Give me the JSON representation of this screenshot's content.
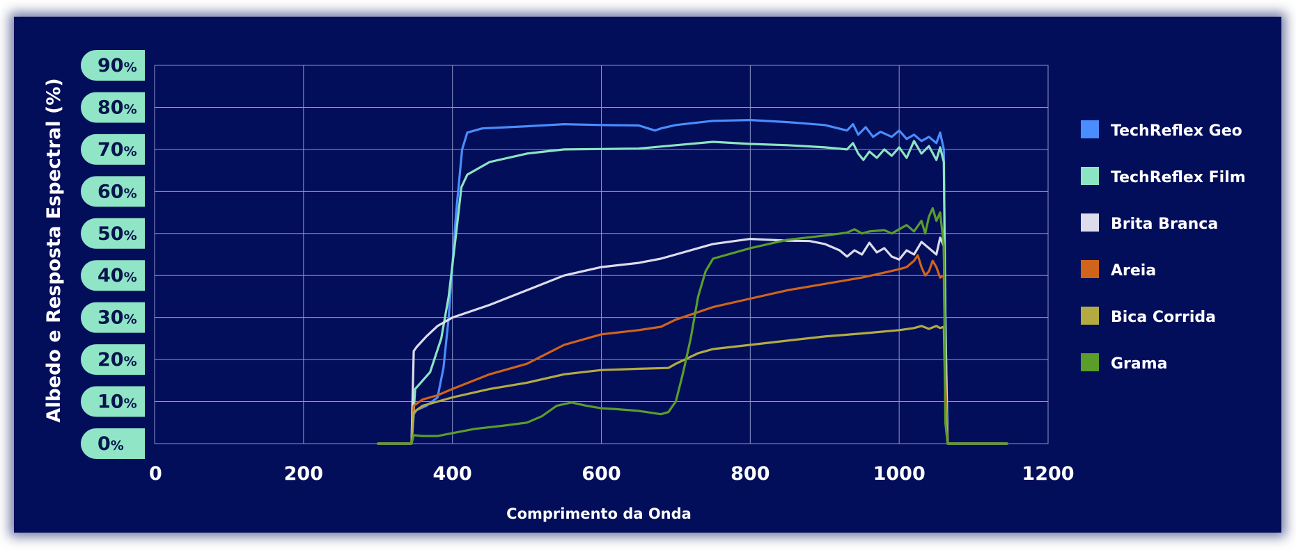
{
  "chart_data": {
    "type": "line",
    "title": "",
    "xlabel": "Comprimento da Onda",
    "ylabel": "Albedo e Resposta Espectral (%)",
    "xlim": [
      0,
      1200
    ],
    "ylim": [
      0,
      90
    ],
    "x_ticks": [
      "0",
      "200",
      "400",
      "600",
      "800",
      "1000",
      "1200"
    ],
    "x_tick_values": [
      0,
      200,
      400,
      600,
      800,
      1000,
      1200
    ],
    "y_ticks": [
      "0%",
      "10%",
      "20%",
      "30%",
      "40%",
      "50%",
      "60%",
      "70%",
      "80%",
      "90%"
    ],
    "y_tick_values": [
      0,
      10,
      20,
      30,
      40,
      50,
      60,
      70,
      80,
      90
    ],
    "grid": true,
    "legend_position": "right",
    "background_color": "#020e5a",
    "tick_pill_color": "#8fe5c6",
    "series": [
      {
        "name": "TechReflex Geo",
        "color": "#4a8dff",
        "points": [
          [
            300,
            0
          ],
          [
            345,
            0
          ],
          [
            348,
            7
          ],
          [
            352,
            8
          ],
          [
            365,
            9
          ],
          [
            380,
            11
          ],
          [
            388,
            18
          ],
          [
            395,
            30
          ],
          [
            405,
            55
          ],
          [
            413,
            70
          ],
          [
            420,
            74
          ],
          [
            440,
            75
          ],
          [
            500,
            75.5
          ],
          [
            550,
            76
          ],
          [
            600,
            75.8
          ],
          [
            650,
            75.7
          ],
          [
            672,
            74.5
          ],
          [
            680,
            75
          ],
          [
            700,
            75.8
          ],
          [
            750,
            76.8
          ],
          [
            800,
            77
          ],
          [
            850,
            76.5
          ],
          [
            900,
            75.8
          ],
          [
            930,
            74.5
          ],
          [
            938,
            76
          ],
          [
            945,
            73.5
          ],
          [
            955,
            75.3
          ],
          [
            965,
            73
          ],
          [
            975,
            74.2
          ],
          [
            990,
            73
          ],
          [
            1000,
            74.5
          ],
          [
            1010,
            72.5
          ],
          [
            1020,
            73.5
          ],
          [
            1030,
            72
          ],
          [
            1040,
            73
          ],
          [
            1050,
            71.5
          ],
          [
            1055,
            74
          ],
          [
            1060,
            70
          ],
          [
            1062,
            30
          ],
          [
            1065,
            0
          ],
          [
            1145,
            0
          ]
        ]
      },
      {
        "name": "TechReflex Film",
        "color": "#8ce5c2",
        "points": [
          [
            300,
            0
          ],
          [
            345,
            0
          ],
          [
            350,
            13
          ],
          [
            370,
            17
          ],
          [
            385,
            25
          ],
          [
            395,
            35
          ],
          [
            405,
            50
          ],
          [
            412,
            61
          ],
          [
            420,
            64
          ],
          [
            450,
            67
          ],
          [
            500,
            69
          ],
          [
            550,
            70
          ],
          [
            600,
            70.1
          ],
          [
            650,
            70.2
          ],
          [
            700,
            71
          ],
          [
            750,
            71.8
          ],
          [
            800,
            71.3
          ],
          [
            850,
            71
          ],
          [
            900,
            70.5
          ],
          [
            930,
            70
          ],
          [
            938,
            71.5
          ],
          [
            945,
            69
          ],
          [
            952,
            67.5
          ],
          [
            960,
            69.5
          ],
          [
            970,
            68
          ],
          [
            980,
            70
          ],
          [
            990,
            68.5
          ],
          [
            1000,
            70.5
          ],
          [
            1010,
            68
          ],
          [
            1020,
            72
          ],
          [
            1030,
            69
          ],
          [
            1040,
            70.8
          ],
          [
            1050,
            67.5
          ],
          [
            1055,
            70.5
          ],
          [
            1060,
            67
          ],
          [
            1062,
            30
          ],
          [
            1065,
            0
          ],
          [
            1145,
            0
          ]
        ]
      },
      {
        "name": "Brita Branca",
        "color": "#dcdcec",
        "points": [
          [
            300,
            0
          ],
          [
            345,
            0
          ],
          [
            348,
            22
          ],
          [
            352,
            23
          ],
          [
            365,
            25.5
          ],
          [
            380,
            28
          ],
          [
            400,
            30
          ],
          [
            450,
            33
          ],
          [
            500,
            36.5
          ],
          [
            550,
            40
          ],
          [
            600,
            42
          ],
          [
            650,
            43
          ],
          [
            680,
            44
          ],
          [
            700,
            45
          ],
          [
            750,
            47.5
          ],
          [
            800,
            48.7
          ],
          [
            850,
            48.3
          ],
          [
            880,
            48.2
          ],
          [
            900,
            47.5
          ],
          [
            920,
            46
          ],
          [
            930,
            44.5
          ],
          [
            940,
            46
          ],
          [
            950,
            45
          ],
          [
            960,
            47.8
          ],
          [
            970,
            45.5
          ],
          [
            980,
            46.5
          ],
          [
            990,
            44.5
          ],
          [
            1000,
            43.8
          ],
          [
            1010,
            46
          ],
          [
            1020,
            45
          ],
          [
            1030,
            48
          ],
          [
            1040,
            46.5
          ],
          [
            1050,
            45
          ],
          [
            1055,
            49
          ],
          [
            1060,
            47
          ],
          [
            1062,
            20
          ],
          [
            1065,
            0
          ],
          [
            1145,
            0
          ]
        ]
      },
      {
        "name": "Areia",
        "color": "#d0641a",
        "points": [
          [
            300,
            0
          ],
          [
            345,
            0
          ],
          [
            348,
            9
          ],
          [
            360,
            10.5
          ],
          [
            380,
            11.5
          ],
          [
            400,
            13
          ],
          [
            450,
            16.5
          ],
          [
            500,
            19
          ],
          [
            550,
            23.5
          ],
          [
            600,
            26
          ],
          [
            650,
            27
          ],
          [
            680,
            27.8
          ],
          [
            700,
            29.5
          ],
          [
            750,
            32.5
          ],
          [
            800,
            34.5
          ],
          [
            850,
            36.5
          ],
          [
            900,
            38
          ],
          [
            950,
            39.5
          ],
          [
            1000,
            41.5
          ],
          [
            1010,
            42
          ],
          [
            1020,
            43.5
          ],
          [
            1025,
            44.8
          ],
          [
            1030,
            42
          ],
          [
            1035,
            40
          ],
          [
            1040,
            41
          ],
          [
            1045,
            43.5
          ],
          [
            1050,
            42
          ],
          [
            1055,
            39.5
          ],
          [
            1060,
            40
          ],
          [
            1062,
            15
          ],
          [
            1065,
            0
          ],
          [
            1145,
            0
          ]
        ]
      },
      {
        "name": "Bica Corrida",
        "color": "#b3ab42",
        "points": [
          [
            300,
            0
          ],
          [
            345,
            0
          ],
          [
            348,
            7.5
          ],
          [
            360,
            9
          ],
          [
            400,
            11
          ],
          [
            450,
            13
          ],
          [
            500,
            14.5
          ],
          [
            550,
            16.5
          ],
          [
            600,
            17.5
          ],
          [
            650,
            17.8
          ],
          [
            690,
            18
          ],
          [
            700,
            19
          ],
          [
            730,
            21.5
          ],
          [
            750,
            22.5
          ],
          [
            800,
            23.5
          ],
          [
            850,
            24.5
          ],
          [
            900,
            25.5
          ],
          [
            950,
            26.2
          ],
          [
            1000,
            27
          ],
          [
            1020,
            27.5
          ],
          [
            1030,
            28
          ],
          [
            1040,
            27.3
          ],
          [
            1050,
            28
          ],
          [
            1055,
            27.5
          ],
          [
            1060,
            27.8
          ],
          [
            1062,
            10
          ],
          [
            1065,
            0
          ],
          [
            1145,
            0
          ]
        ]
      },
      {
        "name": "Grama",
        "color": "#5a9d2b",
        "points": [
          [
            300,
            0
          ],
          [
            345,
            0
          ],
          [
            348,
            2
          ],
          [
            360,
            1.8
          ],
          [
            380,
            1.8
          ],
          [
            400,
            2.5
          ],
          [
            430,
            3.5
          ],
          [
            470,
            4.3
          ],
          [
            500,
            5
          ],
          [
            520,
            6.5
          ],
          [
            540,
            9
          ],
          [
            560,
            9.8
          ],
          [
            580,
            9
          ],
          [
            600,
            8.4
          ],
          [
            620,
            8.2
          ],
          [
            650,
            7.8
          ],
          [
            680,
            7
          ],
          [
            690,
            7.5
          ],
          [
            700,
            10
          ],
          [
            710,
            17
          ],
          [
            720,
            25
          ],
          [
            730,
            35
          ],
          [
            740,
            41
          ],
          [
            750,
            44
          ],
          [
            800,
            46.5
          ],
          [
            850,
            48.5
          ],
          [
            900,
            49.5
          ],
          [
            930,
            50.2
          ],
          [
            940,
            51
          ],
          [
            950,
            50
          ],
          [
            960,
            50.5
          ],
          [
            980,
            50.8
          ],
          [
            990,
            50
          ],
          [
            1000,
            51
          ],
          [
            1010,
            52
          ],
          [
            1020,
            50.5
          ],
          [
            1030,
            53
          ],
          [
            1035,
            50
          ],
          [
            1040,
            54
          ],
          [
            1045,
            56
          ],
          [
            1050,
            53
          ],
          [
            1055,
            55
          ],
          [
            1060,
            47
          ],
          [
            1062,
            5
          ],
          [
            1065,
            0
          ],
          [
            1145,
            0
          ]
        ]
      }
    ]
  }
}
